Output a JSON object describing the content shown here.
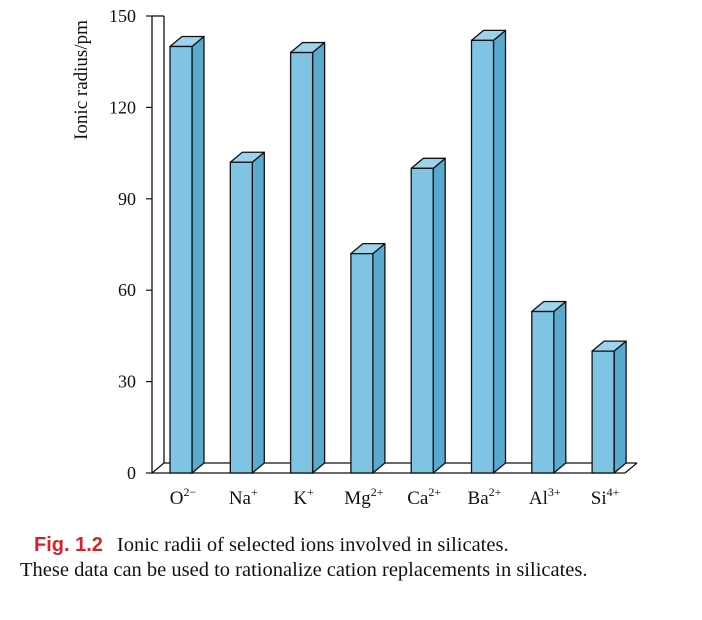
{
  "chart_data": {
    "type": "bar",
    "title": "",
    "ylabel": "Ionic radius/pm",
    "xlabel": "",
    "ylim": [
      0,
      150
    ],
    "yticks": [
      0,
      30,
      60,
      90,
      120,
      150
    ],
    "categories": [
      {
        "base": "O",
        "sup": "2−"
      },
      {
        "base": "Na",
        "sup": "+"
      },
      {
        "base": "K",
        "sup": "+"
      },
      {
        "base": "Mg",
        "sup": "2+"
      },
      {
        "base": "Ca",
        "sup": "2+"
      },
      {
        "base": "Ba",
        "sup": "2+"
      },
      {
        "base": "Al",
        "sup": "3+"
      },
      {
        "base": "Si",
        "sup": "4+"
      }
    ],
    "values": [
      140,
      102,
      138,
      72,
      100,
      142,
      53,
      40
    ],
    "grid": false,
    "bar_color": "#7fc4e2",
    "bar_side_color": "#5aa9cf",
    "bar_top_color": "#9dd3ec"
  },
  "caption": {
    "label": "Fig. 1.2",
    "text_line1": "Ionic radii of selected ions involved in silicates.",
    "text_rest": "These data can be used to rationalize cation replacements in silicates."
  }
}
